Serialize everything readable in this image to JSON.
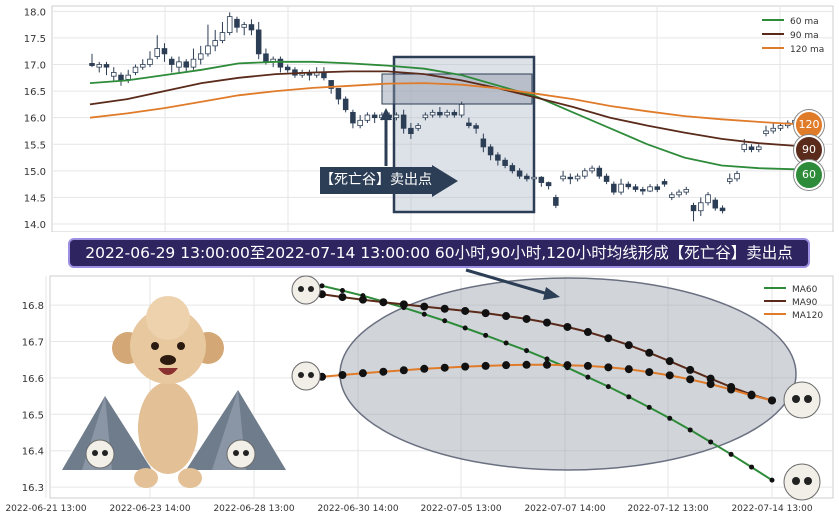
{
  "banner": "2022-06-29 13:00:00至2022-07-14 13:00:00 60小时,90小时,120小时均线形成【死亡谷】卖出点",
  "sell_label": "【死亡谷】卖出点",
  "badges": {
    "b120": "120",
    "b90": "90",
    "b60": "60"
  },
  "colors": {
    "ma60": "#2e8b3a",
    "ma90": "#5a2a1a",
    "ma120": "#e07b2a",
    "up": "#ffffff",
    "down": "#2c3e55"
  },
  "chart_data": [
    {
      "type": "candlestick",
      "title": "",
      "yticks": [
        14.0,
        14.5,
        15.0,
        15.5,
        16.0,
        16.5,
        17.0,
        17.5,
        18.0
      ],
      "ylim": [
        13.85,
        18.1
      ],
      "legend": {
        "position": "top-right",
        "entries": [
          "60 ma",
          "90 ma",
          "120 ma"
        ]
      },
      "grid": true,
      "candles": [
        [
          17.02,
          16.98,
          17.2,
          16.95
        ],
        [
          16.95,
          17.0,
          17.05,
          16.85
        ],
        [
          17.0,
          16.95,
          17.05,
          16.8
        ],
        [
          16.78,
          16.85,
          16.95,
          16.7
        ],
        [
          16.8,
          16.7,
          16.85,
          16.6
        ],
        [
          16.72,
          16.8,
          16.9,
          16.65
        ],
        [
          16.85,
          16.95,
          17.0,
          16.8
        ],
        [
          16.95,
          17.0,
          17.1,
          16.9
        ],
        [
          17.0,
          17.1,
          17.25,
          16.95
        ],
        [
          17.15,
          17.3,
          17.55,
          17.1
        ],
        [
          17.3,
          17.2,
          17.4,
          17.05
        ],
        [
          17.1,
          17.0,
          17.15,
          16.85
        ],
        [
          16.95,
          17.05,
          17.15,
          16.85
        ],
        [
          17.05,
          16.95,
          17.1,
          16.85
        ],
        [
          16.95,
          17.1,
          17.3,
          16.9
        ],
        [
          17.1,
          17.2,
          17.35,
          17.0
        ],
        [
          17.2,
          17.35,
          17.75,
          17.15
        ],
        [
          17.35,
          17.45,
          17.65,
          17.25
        ],
        [
          17.45,
          17.6,
          17.8,
          17.4
        ],
        [
          17.6,
          17.9,
          17.98,
          17.55
        ],
        [
          17.85,
          17.7,
          17.9,
          17.6
        ],
        [
          17.7,
          17.75,
          17.8,
          17.55
        ],
        [
          17.75,
          17.65,
          17.85,
          17.55
        ],
        [
          17.65,
          17.2,
          17.8,
          17.1
        ],
        [
          17.2,
          17.05,
          17.3,
          17.0
        ],
        [
          17.05,
          17.1,
          17.15,
          16.95
        ],
        [
          17.1,
          16.95,
          17.15,
          16.85
        ],
        [
          16.95,
          16.9,
          17.0,
          16.85
        ],
        [
          16.9,
          16.8,
          16.95,
          16.75
        ],
        [
          16.8,
          16.85,
          16.9,
          16.75
        ],
        [
          16.85,
          16.8,
          16.9,
          16.7
        ],
        [
          16.8,
          16.85,
          16.95,
          16.75
        ],
        [
          16.85,
          16.75,
          16.95,
          16.7
        ],
        [
          16.7,
          16.55,
          16.7,
          16.45
        ],
        [
          16.55,
          16.35,
          16.55,
          16.25
        ],
        [
          16.35,
          16.15,
          16.4,
          16.1
        ],
        [
          16.1,
          15.9,
          16.15,
          15.8
        ],
        [
          15.85,
          15.95,
          16.05,
          15.8
        ],
        [
          15.95,
          16.05,
          16.1,
          15.9
        ],
        [
          16.05,
          16.0,
          16.1,
          15.9
        ],
        [
          16.0,
          16.05,
          16.1,
          15.95
        ],
        [
          16.05,
          16.0,
          16.1,
          15.95
        ],
        [
          16.0,
          16.05,
          16.1,
          15.95
        ],
        [
          16.05,
          15.8,
          16.15,
          15.7
        ],
        [
          15.8,
          15.7,
          15.9,
          15.6
        ],
        [
          15.8,
          15.85,
          15.9,
          15.75
        ],
        [
          16.0,
          16.05,
          16.1,
          15.95
        ],
        [
          16.05,
          16.1,
          16.15,
          16.0
        ],
        [
          16.1,
          16.05,
          16.2,
          16.0
        ],
        [
          16.05,
          16.1,
          16.15,
          16.0
        ],
        [
          16.1,
          16.05,
          16.15,
          16.0
        ],
        [
          16.05,
          16.25,
          16.3,
          16.0
        ],
        [
          15.9,
          15.85,
          16.0,
          15.8
        ],
        [
          15.85,
          15.8,
          15.9,
          15.7
        ],
        [
          15.6,
          15.45,
          15.7,
          15.35
        ],
        [
          15.45,
          15.3,
          15.5,
          15.2
        ],
        [
          15.3,
          15.2,
          15.35,
          15.1
        ],
        [
          15.2,
          15.1,
          15.25,
          15.05
        ],
        [
          15.1,
          15.0,
          15.15,
          14.95
        ],
        [
          15.0,
          14.9,
          15.05,
          14.85
        ],
        [
          14.9,
          14.85,
          14.95,
          14.8
        ],
        [
          14.85,
          14.88,
          14.95,
          14.8
        ],
        [
          14.88,
          14.78,
          14.9,
          14.7
        ],
        [
          14.78,
          14.72,
          14.8,
          14.65
        ],
        [
          14.5,
          14.35,
          14.55,
          14.3
        ],
        [
          14.85,
          14.9,
          15.0,
          14.8
        ],
        [
          14.88,
          14.85,
          14.95,
          14.75
        ],
        [
          14.85,
          14.9,
          14.95,
          14.8
        ],
        [
          14.9,
          15.0,
          15.05,
          14.85
        ],
        [
          15.0,
          15.05,
          15.1,
          14.95
        ],
        [
          15.05,
          14.9,
          15.1,
          14.85
        ],
        [
          14.9,
          14.8,
          14.95,
          14.75
        ],
        [
          14.75,
          14.6,
          14.8,
          14.55
        ],
        [
          14.6,
          14.75,
          14.85,
          14.55
        ],
        [
          14.75,
          14.7,
          14.8,
          14.65
        ],
        [
          14.7,
          14.65,
          14.75,
          14.6
        ],
        [
          14.65,
          14.62,
          14.7,
          14.55
        ],
        [
          14.62,
          14.7,
          14.75,
          14.6
        ],
        [
          14.7,
          14.65,
          14.75,
          14.6
        ],
        [
          14.8,
          14.75,
          14.85,
          14.7
        ],
        [
          14.5,
          14.55,
          14.6,
          14.45
        ],
        [
          14.55,
          14.6,
          14.65,
          14.5
        ],
        [
          14.6,
          14.65,
          14.7,
          14.55
        ],
        [
          14.35,
          14.25,
          14.4,
          14.05
        ],
        [
          14.25,
          14.4,
          14.5,
          14.15
        ],
        [
          14.4,
          14.55,
          14.6,
          14.35
        ],
        [
          14.45,
          14.3,
          14.5,
          14.25
        ],
        [
          14.3,
          14.25,
          14.35,
          14.2
        ],
        [
          14.8,
          14.85,
          14.95,
          14.75
        ],
        [
          14.85,
          14.95,
          15.0,
          14.8
        ],
        [
          15.4,
          15.5,
          15.6,
          15.35
        ],
        [
          15.45,
          15.4,
          15.5,
          15.35
        ],
        [
          15.4,
          15.45,
          15.5,
          15.35
        ],
        [
          15.7,
          15.75,
          15.85,
          15.65
        ],
        [
          15.75,
          15.8,
          15.9,
          15.7
        ],
        [
          15.8,
          15.85,
          15.9,
          15.75
        ],
        [
          15.85,
          15.9,
          15.95,
          15.8
        ],
        [
          15.9,
          15.95,
          16.0,
          15.85
        ]
      ],
      "ma60": [
        16.65,
        16.7,
        16.8,
        16.9,
        17.02,
        17.05,
        17.05,
        17.02,
        16.98,
        16.92,
        16.8,
        16.6,
        16.4,
        16.1,
        15.8,
        15.5,
        15.25,
        15.1,
        15.05,
        15.03
      ],
      "ma90": [
        16.25,
        16.35,
        16.5,
        16.65,
        16.75,
        16.82,
        16.85,
        16.87,
        16.87,
        16.82,
        16.7,
        16.55,
        16.38,
        16.2,
        16.0,
        15.85,
        15.72,
        15.6,
        15.52,
        15.47
      ],
      "ma120": [
        16.0,
        16.08,
        16.18,
        16.3,
        16.42,
        16.5,
        16.56,
        16.6,
        16.64,
        16.65,
        16.62,
        16.55,
        16.45,
        16.35,
        16.22,
        16.12,
        16.03,
        15.97,
        15.92,
        15.88
      ]
    },
    {
      "type": "line",
      "title": "",
      "xticks": [
        "2022-06-21 13:00",
        "2022-06-23 14:00",
        "2022-06-28 13:00",
        "2022-06-30 14:00",
        "2022-07-05 13:00",
        "2022-07-07 14:00",
        "2022-07-12 13:00",
        "2022-07-14 13:00"
      ],
      "yticks": [
        16.3,
        16.4,
        16.5,
        16.6,
        16.7,
        16.8
      ],
      "ylim": [
        16.27,
        16.88
      ],
      "legend": {
        "position": "top-right",
        "entries": [
          "MA60",
          "MA90",
          "MA120"
        ]
      },
      "grid": true,
      "series": [
        {
          "name": "MA60",
          "color": "#2e8b3a",
          "values": [
            16.853,
            16.84,
            16.826,
            16.81,
            16.793,
            16.775,
            16.757,
            16.737,
            16.717,
            16.696,
            16.675,
            16.652,
            16.628,
            16.602,
            16.576,
            16.548,
            16.519,
            16.489,
            16.457,
            16.424,
            16.39,
            16.355,
            16.319
          ]
        },
        {
          "name": "MA90",
          "color": "#5a2a1a",
          "values": [
            16.83,
            16.822,
            16.815,
            16.808,
            16.802,
            16.796,
            16.79,
            16.784,
            16.778,
            16.77,
            16.762,
            16.752,
            16.74,
            16.726,
            16.709,
            16.69,
            16.669,
            16.646,
            16.622,
            16.598,
            16.575,
            16.554,
            16.538
          ]
        },
        {
          "name": "MA120",
          "color": "#e07b2a",
          "values": [
            16.603,
            16.608,
            16.613,
            16.617,
            16.621,
            16.625,
            16.628,
            16.631,
            16.633,
            16.635,
            16.636,
            16.636,
            16.635,
            16.633,
            16.629,
            16.624,
            16.616,
            16.607,
            16.596,
            16.583,
            16.568,
            16.552,
            16.538
          ]
        }
      ]
    }
  ]
}
